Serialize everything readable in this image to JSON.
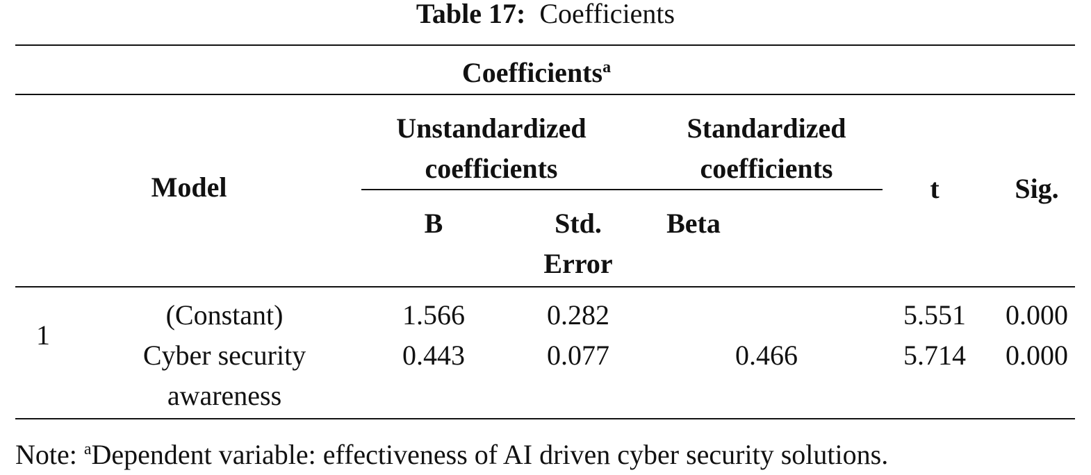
{
  "title": {
    "label": "Table 17:",
    "text": "Coefficients"
  },
  "table": {
    "caption": "Coefficients",
    "caption_marker": "a",
    "header": {
      "model": "Model",
      "unstandardized": "Unstandardized coefficients",
      "standardized": "Standardized coefficients",
      "t": "t",
      "sig": "Sig.",
      "b": "B",
      "std_error": "Std. Error",
      "beta": "Beta"
    },
    "model_number": "1",
    "rows": [
      {
        "predictor": "(Constant)",
        "b": "1.566",
        "std_error": "0.282",
        "t": "5.551",
        "sig": "0.000"
      },
      {
        "predictor": "Cyber security awareness",
        "b": "0.443",
        "std_error": "0.077",
        "beta": "0.466",
        "t": "5.714",
        "sig": "0.000"
      }
    ]
  },
  "note": {
    "prefix": "Note:",
    "marker": "a",
    "text": "Dependent variable: effectiveness of AI driven cyber security solutions."
  }
}
